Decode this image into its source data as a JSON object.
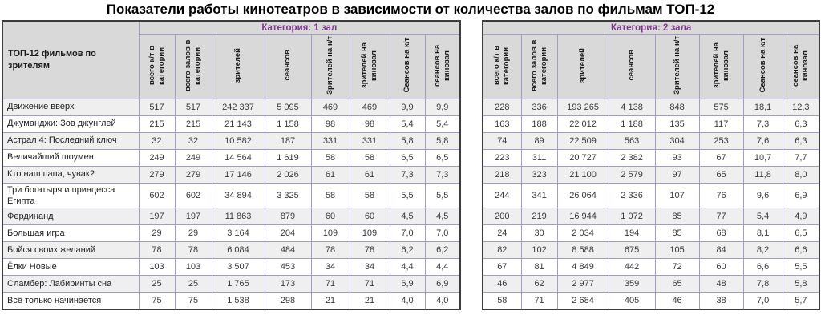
{
  "page_title": "Показатели работы кинотеатров в зависимости от количества залов по фильмам ТОП-12",
  "colors": {
    "accent_purple": "#803a8c",
    "header_bg": "#d9d9d9",
    "grid_border": "#a49ac6",
    "outer_border": "#3c3c3c",
    "row_stripe": "#efefef"
  },
  "films_header": "ТОП-12 фильмов по зрителям",
  "metric_columns": [
    "всего к/т в категории",
    "всего залов в категории",
    "зрителей",
    "сеансов",
    "Зрителей на к/т",
    "зрителей на кинозал",
    "Сеансов на к/т",
    "сеансов на кинозал"
  ],
  "films": [
    "Движение вверх",
    "Джуманджи: Зов джунглей",
    "Астрал 4: Последний ключ",
    "Величайший шоумен",
    "Кто наш папа, чувак?",
    "Три богатыря и принцесса Египта",
    "Фердинанд",
    "Большая игра",
    "Бойся своих желаний",
    "Ёлки Новые",
    "Сламбер: Лабиринты сна",
    "Всё только начинается"
  ],
  "categories": [
    {
      "label": "Категория: 1 зал",
      "rows": [
        [
          "517",
          "517",
          "242 337",
          "5 095",
          "469",
          "469",
          "9,9",
          "9,9"
        ],
        [
          "215",
          "215",
          "21 143",
          "1 158",
          "98",
          "98",
          "5,4",
          "5,4"
        ],
        [
          "32",
          "32",
          "10 582",
          "187",
          "331",
          "331",
          "5,8",
          "5,8"
        ],
        [
          "249",
          "249",
          "14 564",
          "1 619",
          "58",
          "58",
          "6,5",
          "6,5"
        ],
        [
          "279",
          "279",
          "17 146",
          "2 026",
          "61",
          "61",
          "7,3",
          "7,3"
        ],
        [
          "602",
          "602",
          "34 894",
          "3 325",
          "58",
          "58",
          "5,5",
          "5,5"
        ],
        [
          "197",
          "197",
          "11 863",
          "879",
          "60",
          "60",
          "4,5",
          "4,5"
        ],
        [
          "29",
          "29",
          "3 164",
          "204",
          "109",
          "109",
          "7,0",
          "7,0"
        ],
        [
          "78",
          "78",
          "6 084",
          "484",
          "78",
          "78",
          "6,2",
          "6,2"
        ],
        [
          "103",
          "103",
          "3 507",
          "453",
          "34",
          "34",
          "4,4",
          "4,4"
        ],
        [
          "25",
          "25",
          "1 765",
          "173",
          "71",
          "71",
          "6,9",
          "6,9"
        ],
        [
          "75",
          "75",
          "1 538",
          "298",
          "21",
          "21",
          "4,0",
          "4,0"
        ]
      ]
    },
    {
      "label": "Категория: 2 зала",
      "rows": [
        [
          "228",
          "336",
          "193 265",
          "4 138",
          "848",
          "575",
          "18,1",
          "12,3"
        ],
        [
          "163",
          "188",
          "22 012",
          "1 188",
          "135",
          "117",
          "7,3",
          "6,3"
        ],
        [
          "74",
          "89",
          "22 509",
          "563",
          "304",
          "253",
          "7,6",
          "6,3"
        ],
        [
          "223",
          "311",
          "20 727",
          "2 382",
          "93",
          "67",
          "10,7",
          "7,7"
        ],
        [
          "218",
          "323",
          "21 100",
          "2 579",
          "97",
          "65",
          "11,8",
          "8,0"
        ],
        [
          "244",
          "341",
          "26 064",
          "2 336",
          "107",
          "76",
          "9,6",
          "6,9"
        ],
        [
          "200",
          "219",
          "16 944",
          "1 072",
          "85",
          "77",
          "5,4",
          "4,9"
        ],
        [
          "24",
          "30",
          "2 034",
          "194",
          "85",
          "68",
          "8,1",
          "6,5"
        ],
        [
          "82",
          "102",
          "8 588",
          "675",
          "105",
          "84",
          "8,2",
          "6,6"
        ],
        [
          "67",
          "81",
          "4 849",
          "442",
          "72",
          "60",
          "6,6",
          "5,5"
        ],
        [
          "46",
          "62",
          "2 977",
          "359",
          "65",
          "48",
          "7,8",
          "5,8"
        ],
        [
          "58",
          "71",
          "2 684",
          "405",
          "46",
          "38",
          "7,0",
          "5,7"
        ]
      ]
    }
  ]
}
